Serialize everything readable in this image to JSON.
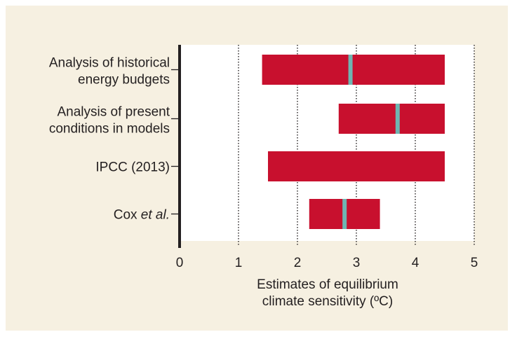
{
  "colors": {
    "panel_bg": "#f6f0e1",
    "plot_bg": "#ffffff",
    "bar": "#c8102e",
    "marker": "#6fb5b2",
    "axis": "#231f20",
    "gridline": "#231f20"
  },
  "chart_data": {
    "type": "bar",
    "orientation": "horizontal",
    "title": "",
    "xlabel": [
      "Estimates of equilibrium",
      "climate sensitivity (ºC)"
    ],
    "xlim": [
      0,
      5
    ],
    "xticks": [
      "0",
      "1",
      "2",
      "3",
      "4",
      "5"
    ],
    "grid": "vertical dotted at 1, 2, 3, 4, 5",
    "categories": [
      {
        "lines": [
          "Analysis of historical",
          "energy budgets"
        ],
        "low": 1.4,
        "high": 4.5,
        "best": 2.9
      },
      {
        "lines": [
          "Analysis of present",
          "conditions in models"
        ],
        "low": 2.7,
        "high": 4.5,
        "best": 3.7
      },
      {
        "lines": [
          "IPCC (2013)"
        ],
        "low": 1.5,
        "high": 4.5,
        "best": null
      },
      {
        "lines": [
          "Cox",
          "et al."
        ],
        "low": 2.2,
        "high": 3.4,
        "best": 2.8
      }
    ]
  }
}
